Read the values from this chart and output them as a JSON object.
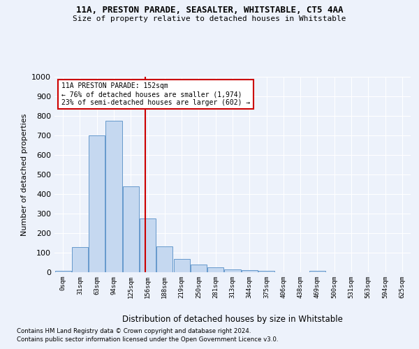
{
  "title_line1": "11A, PRESTON PARADE, SEASALTER, WHITSTABLE, CT5 4AA",
  "title_line2": "Size of property relative to detached houses in Whitstable",
  "xlabel": "Distribution of detached houses by size in Whitstable",
  "ylabel": "Number of detached properties",
  "bin_labels": [
    "0sqm",
    "31sqm",
    "63sqm",
    "94sqm",
    "125sqm",
    "156sqm",
    "188sqm",
    "219sqm",
    "250sqm",
    "281sqm",
    "313sqm",
    "344sqm",
    "375sqm",
    "406sqm",
    "438sqm",
    "469sqm",
    "500sqm",
    "531sqm",
    "563sqm",
    "594sqm",
    "625sqm"
  ],
  "bar_values": [
    8,
    128,
    700,
    775,
    440,
    275,
    133,
    68,
    40,
    26,
    14,
    11,
    7,
    0,
    0,
    8,
    0,
    0,
    0,
    0,
    0
  ],
  "bar_color": "#c5d8f0",
  "bar_edge_color": "#6699cc",
  "vline_color": "#cc0000",
  "annotation_text": "11A PRESTON PARADE: 152sqm\n← 76% of detached houses are smaller (1,974)\n23% of semi-detached houses are larger (602) →",
  "annotation_box_color": "#ffffff",
  "annotation_box_edge": "#cc0000",
  "ylim": [
    0,
    1000
  ],
  "yticks": [
    0,
    100,
    200,
    300,
    400,
    500,
    600,
    700,
    800,
    900,
    1000
  ],
  "footnote1": "Contains HM Land Registry data © Crown copyright and database right 2024.",
  "footnote2": "Contains public sector information licensed under the Open Government Licence v3.0.",
  "bg_color": "#edf2fb",
  "grid_color": "#ffffff"
}
